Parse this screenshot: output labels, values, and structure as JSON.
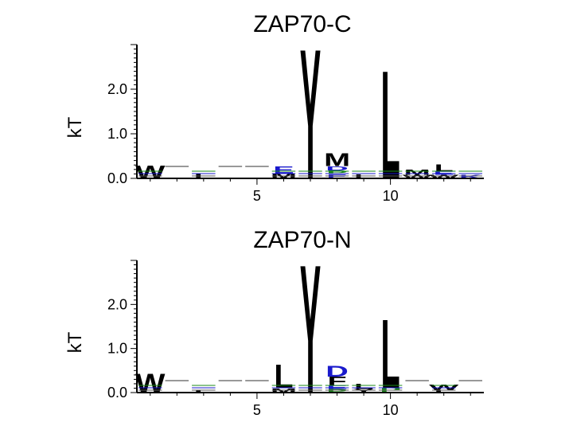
{
  "chart_data": [
    {
      "type": "sequence-logo",
      "title": "ZAP70-C",
      "ylabel": "kT",
      "ylim": [
        0,
        3.0
      ],
      "xlim": [
        0.5,
        13.5
      ],
      "yticks": [
        "0.0",
        "1.0",
        "2.0"
      ],
      "xticks": [
        "5",
        "10"
      ],
      "positions": [
        {
          "pos": 1,
          "letters": [
            {
              "char": "W",
              "height": 0.3
            }
          ]
        },
        {
          "pos": 2,
          "letters": []
        },
        {
          "pos": 3,
          "letters": [
            {
              "char": "L",
              "height": 0.12
            }
          ]
        },
        {
          "pos": 4,
          "letters": []
        },
        {
          "pos": 5,
          "letters": []
        },
        {
          "pos": 6,
          "letters": [
            {
              "char": "M",
              "height": 0.12
            },
            {
              "char": "E",
              "height": 0.15
            }
          ]
        },
        {
          "pos": 7,
          "letters": [
            {
              "char": "Y",
              "height": 3.0
            }
          ]
        },
        {
          "pos": 8,
          "letters": [
            {
              "char": "E",
              "height": 0.1
            },
            {
              "char": "P",
              "height": 0.08
            },
            {
              "char": "D",
              "height": 0.1
            },
            {
              "char": "M",
              "height": 0.3
            }
          ]
        },
        {
          "pos": 9,
          "letters": [
            {
              "char": "L",
              "height": 0.1
            }
          ]
        },
        {
          "pos": 10,
          "letters": [
            {
              "char": "L",
              "height": 2.5
            }
          ]
        },
        {
          "pos": 11,
          "letters": [
            {
              "char": "W",
              "height": 0.08
            },
            {
              "char": "M",
              "height": 0.12
            }
          ]
        },
        {
          "pos": 12,
          "letters": [
            {
              "char": "W",
              "height": 0.08
            },
            {
              "char": "E",
              "height": 0.08
            },
            {
              "char": "L",
              "height": 0.15
            }
          ]
        },
        {
          "pos": 13,
          "letters": [
            {
              "char": "K",
              "height": 0.08
            }
          ]
        }
      ]
    },
    {
      "type": "sequence-logo",
      "title": "ZAP70-N",
      "ylabel": "kT",
      "ylim": [
        0,
        3.0
      ],
      "xlim": [
        0.5,
        13.5
      ],
      "yticks": [
        "0.0",
        "1.0",
        "2.0"
      ],
      "xticks": [
        "5",
        "10"
      ],
      "positions": [
        {
          "pos": 1,
          "letters": [
            {
              "char": "W",
              "height": 0.45
            }
          ]
        },
        {
          "pos": 2,
          "letters": []
        },
        {
          "pos": 3,
          "letters": [
            {
              "char": "L",
              "height": 0.06
            }
          ]
        },
        {
          "pos": 4,
          "letters": []
        },
        {
          "pos": 5,
          "letters": []
        },
        {
          "pos": 6,
          "letters": [
            {
              "char": "M",
              "height": 0.1
            },
            {
              "char": "L",
              "height": 0.55
            }
          ]
        },
        {
          "pos": 7,
          "letters": [
            {
              "char": "Y",
              "height": 3.0
            }
          ]
        },
        {
          "pos": 8,
          "letters": [
            {
              "char": "P",
              "height": 0.08
            },
            {
              "char": "E",
              "height": 0.08
            },
            {
              "char": "F",
              "height": 0.2
            },
            {
              "char": "D",
              "height": 0.25
            }
          ]
        },
        {
          "pos": 9,
          "letters": [
            {
              "char": "Y",
              "height": 0.08
            },
            {
              "char": "L",
              "height": 0.12
            }
          ]
        },
        {
          "pos": 10,
          "letters": [
            {
              "char": "P",
              "height": 0.12
            },
            {
              "char": "L",
              "height": 1.6
            }
          ]
        },
        {
          "pos": 11,
          "letters": []
        },
        {
          "pos": 12,
          "letters": [
            {
              "char": "L",
              "height": 0.06
            },
            {
              "char": "W",
              "height": 0.12
            }
          ]
        },
        {
          "pos": 13,
          "letters": []
        }
      ]
    }
  ],
  "colors": {
    "hydrophobic": "#000000",
    "acidic": "#1a1acc",
    "polar": "#1a8a1a",
    "basic": "#1a1acc"
  }
}
